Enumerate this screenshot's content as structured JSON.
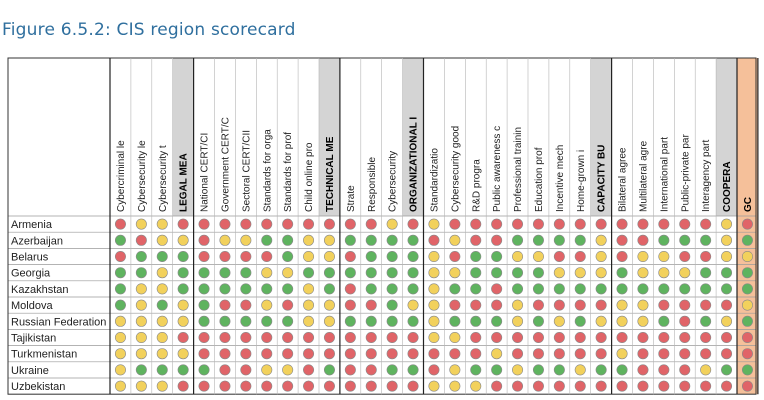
{
  "title": "Figure 6.5.2: CIS region scorecard",
  "colors": {
    "red": "#e06468",
    "yellow": "#f2d15c",
    "green": "#5fb35f",
    "total": "#f5c09a",
    "header_gray": "#d4d4d4",
    "title_blue": "#2f6f9e"
  },
  "columns": [
    {
      "label": "Cybercriminal le",
      "group": "legal"
    },
    {
      "label": "Cybersecurity le",
      "group": "legal"
    },
    {
      "label": "Cybersecurity t",
      "group": "legal"
    },
    {
      "label": "LEGAL MEA",
      "group": "legal",
      "summary": true
    },
    {
      "label": "National CERT/CI",
      "group": "technical"
    },
    {
      "label": "Government CERT/C",
      "group": "technical"
    },
    {
      "label": "Sectoral CERT/CII",
      "group": "technical"
    },
    {
      "label": "Standards for orga",
      "group": "technical"
    },
    {
      "label": "Standards for prof",
      "group": "technical"
    },
    {
      "label": "Child online pro",
      "group": "technical"
    },
    {
      "label": "TECHNICAL ME",
      "group": "technical",
      "summary": true
    },
    {
      "label": "Strate",
      "group": "organizational"
    },
    {
      "label": "Responsible",
      "group": "organizational"
    },
    {
      "label": "Cybersecurity",
      "group": "organizational"
    },
    {
      "label": "ORGANIZATIONAL I",
      "group": "organizational",
      "summary": true
    },
    {
      "label": "Standardizatio",
      "group": "capacity"
    },
    {
      "label": "Cybersecurity good",
      "group": "capacity"
    },
    {
      "label": "R&D progra",
      "group": "capacity"
    },
    {
      "label": "Public awareness c",
      "group": "capacity"
    },
    {
      "label": "Professional trainin",
      "group": "capacity"
    },
    {
      "label": "Education prof",
      "group": "capacity"
    },
    {
      "label": "Incentive mech",
      "group": "capacity"
    },
    {
      "label": "Home-grown i",
      "group": "capacity"
    },
    {
      "label": "CAPACITY BU",
      "group": "capacity",
      "summary": true
    },
    {
      "label": "Bilateral agree",
      "group": "cooperation"
    },
    {
      "label": "Multilateral agre",
      "group": "cooperation"
    },
    {
      "label": "International part",
      "group": "cooperation"
    },
    {
      "label": "Public-private par",
      "group": "cooperation"
    },
    {
      "label": "Interagency part",
      "group": "cooperation"
    },
    {
      "label": "COOPERA",
      "group": "cooperation",
      "summary": true
    },
    {
      "label": "GC",
      "group": "total",
      "summary": true
    }
  ],
  "rows": [
    {
      "country": "Armenia",
      "scores": "RYYRRRRRRRRRRYRYRRRRRRRRRRRRRYR"
    },
    {
      "country": "Azerbaijan",
      "scores": "GRYYRYYGGYYGGGGRYRRGGGGYRRGGGYG"
    },
    {
      "country": "Belarus",
      "scores": "RGGGRRRRGYYRGGGYRGGYYRRYRYYRRYY"
    },
    {
      "country": "Georgia",
      "scores": "GGYGGGGYYGGGGGGYYGGGGYYYGYYYGGG"
    },
    {
      "country": "Kazakhstan",
      "scores": "GYYGGGGGGYGRGGGYGGRGGGGGGGGGGGG"
    },
    {
      "country": "Moldova",
      "scores": "GYGYGRRYRYYRRGYYRRRYRRRRYYRRRRY"
    },
    {
      "country": "Russian Federation",
      "scores": "YYYYGGGGGYYGGGGYGGGYGYGYYYGRGYG"
    },
    {
      "country": "Tajikistan",
      "scores": "YYYRRRRRRRRRRRRYYRRRRRRRRRRRRRR"
    },
    {
      "country": "Turkmenistan",
      "scores": "YYYYRRRRRRRRRRRRRRYRRRRRYRRRRRR"
    },
    {
      "country": "Ukraine",
      "scores": "YGGGGRRYYRGRRGGRYGGYGGYGGRRRYGG"
    },
    {
      "country": "Uzbekistan",
      "scores": "YYYRRRRRRRRRRRRYYYRRRRRRRRRRRRR"
    }
  ]
}
